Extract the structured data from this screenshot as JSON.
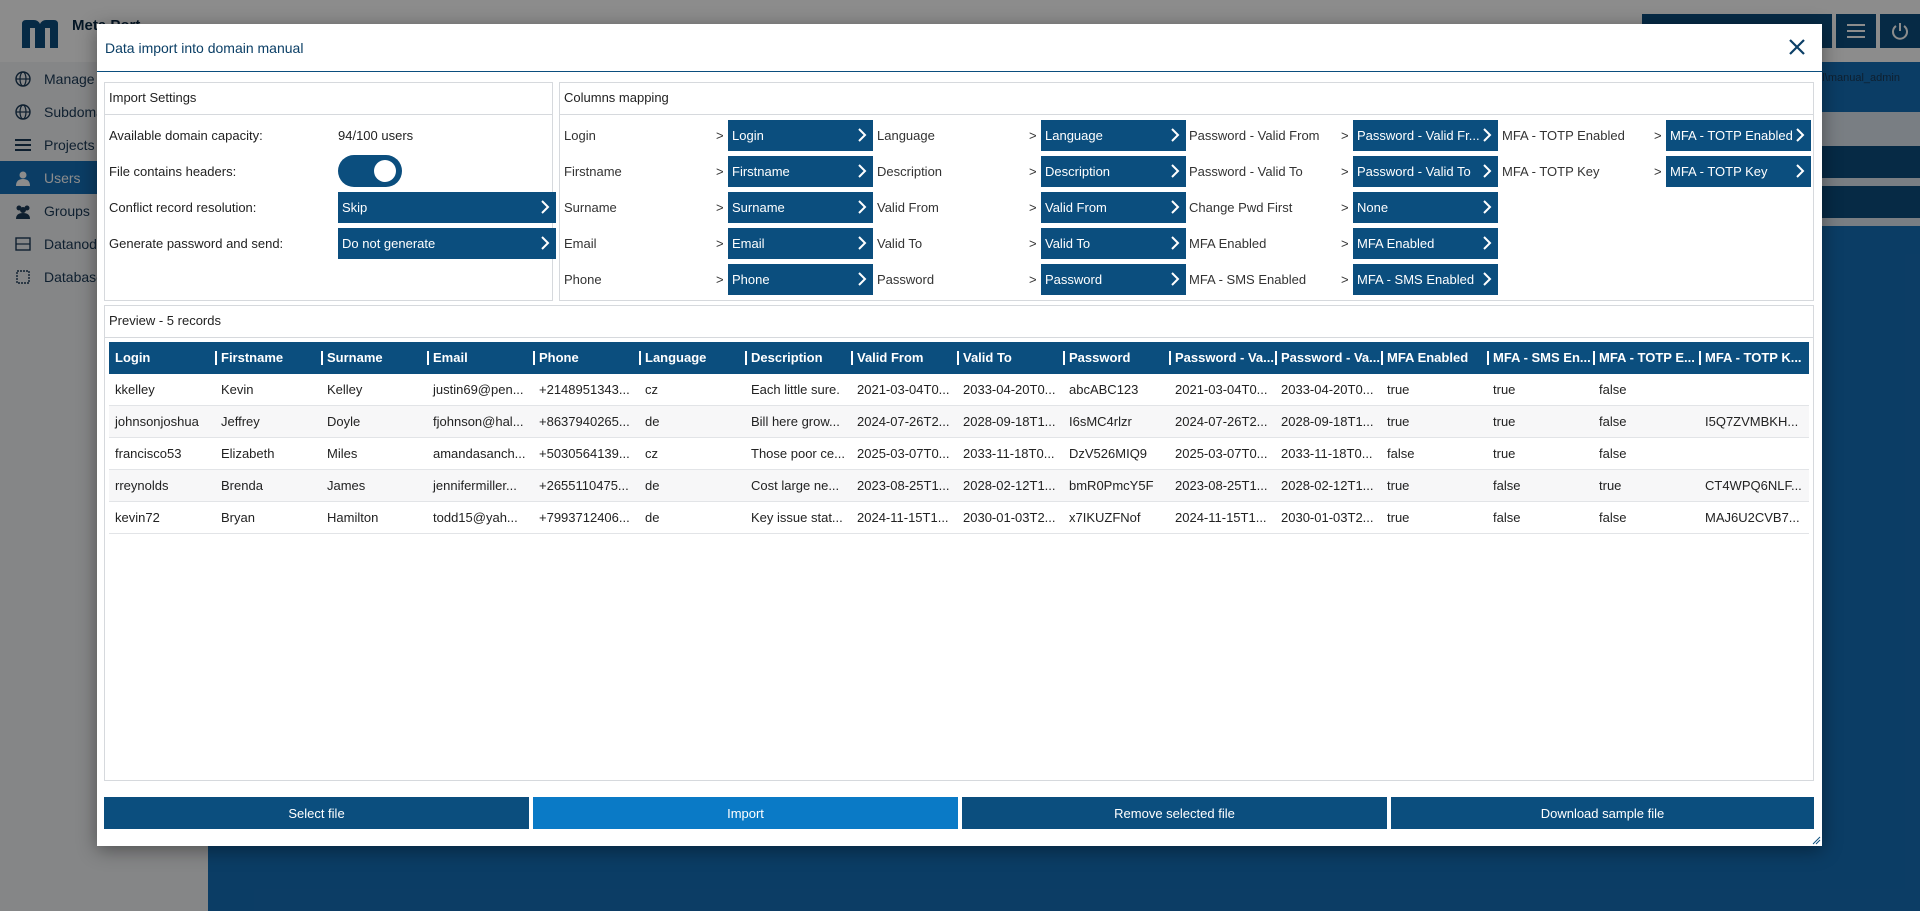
{
  "background": {
    "logo_text": "Meta Port",
    "user_label": "al\\manual_admin",
    "sidebar": [
      {
        "label": "Manage",
        "icon": "globe-icon"
      },
      {
        "label": "Subdoma",
        "icon": "globe-icon"
      },
      {
        "label": "Projects",
        "icon": "list-icon"
      },
      {
        "label": "Users",
        "icon": "user-icon"
      },
      {
        "label": "Groups",
        "icon": "group-icon"
      },
      {
        "label": "Datanode",
        "icon": "datanode-icon"
      },
      {
        "label": "Database",
        "icon": "database-icon"
      }
    ],
    "active_sidebar_index": 3
  },
  "modal": {
    "title": "Data import into domain manual",
    "close_icon": "close-icon"
  },
  "import_settings": {
    "title": "Import Settings",
    "capacity_label": "Available domain capacity:",
    "capacity_value": "94/100 users",
    "headers_label": "File contains headers:",
    "headers_enabled": true,
    "conflict_label": "Conflict record resolution:",
    "conflict_value": "Skip",
    "password_label": "Generate password and send:",
    "password_value": "Do not generate"
  },
  "columns_mapping": {
    "title": "Columns mapping",
    "columns": [
      [
        {
          "field": "Login",
          "mapped": "Login"
        },
        {
          "field": "Firstname",
          "mapped": "Firstname"
        },
        {
          "field": "Surname",
          "mapped": "Surname"
        },
        {
          "field": "Email",
          "mapped": "Email"
        },
        {
          "field": "Phone",
          "mapped": "Phone"
        }
      ],
      [
        {
          "field": "Language",
          "mapped": "Language"
        },
        {
          "field": "Description",
          "mapped": "Description"
        },
        {
          "field": "Valid From",
          "mapped": "Valid From"
        },
        {
          "field": "Valid To",
          "mapped": "Valid To"
        },
        {
          "field": "Password",
          "mapped": "Password"
        }
      ],
      [
        {
          "field": "Password - Valid From",
          "mapped": "Password - Valid Fr..."
        },
        {
          "field": "Password - Valid To",
          "mapped": "Password - Valid To"
        },
        {
          "field": "Change Pwd First",
          "mapped": "None"
        },
        {
          "field": "MFA Enabled",
          "mapped": "MFA Enabled"
        },
        {
          "field": "MFA - SMS Enabled",
          "mapped": "MFA - SMS Enabled"
        }
      ],
      [
        {
          "field": "MFA - TOTP Enabled",
          "mapped": "MFA - TOTP Enabled"
        },
        {
          "field": "MFA - TOTP Key",
          "mapped": "MFA - TOTP Key"
        }
      ]
    ],
    "arrow": ">"
  },
  "preview": {
    "title": "Preview - 5 records",
    "headers": [
      "Login",
      "Firstname",
      "Surname",
      "Email",
      "Phone",
      "Language",
      "Description",
      "Valid From",
      "Valid To",
      "Password",
      "Password - Va...",
      "Password - Va...",
      "MFA Enabled",
      "MFA - SMS En...",
      "MFA - TOTP E...",
      "MFA - TOTP K..."
    ],
    "rows": [
      [
        "kkelley",
        "Kevin",
        "Kelley",
        "justin69@pen...",
        "+2148951343...",
        "cz",
        "Each little sure.",
        "2021-03-04T0...",
        "2033-04-20T0...",
        "abcABC123",
        "2021-03-04T0...",
        "2033-04-20T0...",
        "true",
        "true",
        "false",
        ""
      ],
      [
        "johnsonjoshua",
        "Jeffrey",
        "Doyle",
        "fjohnson@hal...",
        "+8637940265...",
        "de",
        "Bill here grow...",
        "2024-07-26T2...",
        "2028-09-18T1...",
        "I6sMC4rlzr",
        "2024-07-26T2...",
        "2028-09-18T1...",
        "true",
        "true",
        "false",
        "I5Q7ZVMBKH..."
      ],
      [
        "francisco53",
        "Elizabeth",
        "Miles",
        "amandasanch...",
        "+5030564139...",
        "cz",
        "Those poor ce...",
        "2025-03-07T0...",
        "2033-11-18T0...",
        "DzV526MIQ9",
        "2025-03-07T0...",
        "2033-11-18T0...",
        "false",
        "true",
        "false",
        ""
      ],
      [
        "rreynolds",
        "Brenda",
        "James",
        "jennifermiller...",
        "+2655110475...",
        "de",
        "Cost large ne...",
        "2023-08-25T1...",
        "2028-02-12T1...",
        "bmR0PmcY5F",
        "2023-08-25T1...",
        "2028-02-12T1...",
        "true",
        "false",
        "true",
        "CT4WPQ6NLF..."
      ],
      [
        "kevin72",
        "Bryan",
        "Hamilton",
        "todd15@yah...",
        "+7993712406...",
        "de",
        "Key issue stat...",
        "2024-11-15T1...",
        "2030-01-03T2...",
        "x7IKUZFNof",
        "2024-11-15T1...",
        "2030-01-03T2...",
        "true",
        "false",
        "false",
        "MAJ6U2CVB7..."
      ]
    ]
  },
  "buttons": {
    "select_file": "Select file",
    "import": "Import",
    "remove_file": "Remove selected file",
    "download_sample": "Download sample file"
  },
  "colors": {
    "primary": "#0b4e7e",
    "accent": "#0a7ac6",
    "sidebar_active": "#1570b8"
  }
}
